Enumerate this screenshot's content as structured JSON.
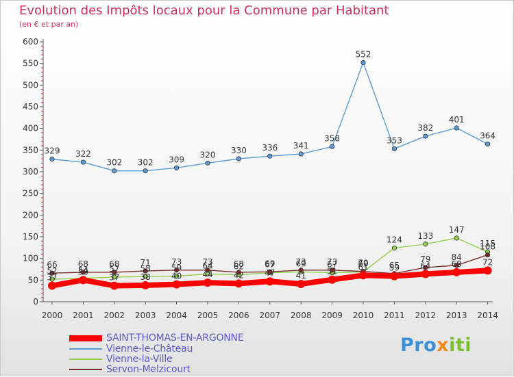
{
  "title": "Evolution des Impôts locaux pour la Commune par Habitant",
  "subtitle": "(en € et par an)",
  "logo": {
    "part1": "Pro",
    "part2": "x",
    "part3": "iti"
  },
  "chart_data": {
    "type": "line",
    "title": "Evolution des Impôts locaux pour la Commune par Habitant",
    "ylabel": "(en € et par an)",
    "xlabel": "",
    "ylim": [
      0,
      600
    ],
    "yticks": [
      0,
      50,
      100,
      150,
      200,
      250,
      300,
      350,
      400,
      450,
      500,
      550,
      600
    ],
    "categories": [
      "2000",
      "2001",
      "2002",
      "2003",
      "2004",
      "2005",
      "2006",
      "2007",
      "2008",
      "2009",
      "2010",
      "2011",
      "2012",
      "2013",
      "2014"
    ],
    "series": [
      {
        "name": "SAINT-THOMAS-EN-ARGONNE",
        "color": "#ff0000",
        "values": [
          37,
          50,
          37,
          38,
          40,
          44,
          42,
          47,
          41,
          51,
          61,
          59,
          64,
          68,
          72
        ]
      },
      {
        "name": "Vienne-le-Château",
        "color": "#5b9bd5",
        "values": [
          329,
          322,
          302,
          302,
          309,
          320,
          330,
          336,
          341,
          358,
          552,
          353,
          382,
          401,
          364
        ]
      },
      {
        "name": "Vienne-la-Ville",
        "color": "#92d050",
        "values": [
          52,
          54,
          57,
          58,
          59,
          64,
          62,
          67,
          69,
          67,
          69,
          124,
          133,
          147,
          115
        ]
      },
      {
        "name": "Servon-Melzicourt",
        "color": "#7a2a2a",
        "values": [
          66,
          68,
          68,
          71,
          73,
          73,
          68,
          69,
          73,
          73,
          70,
          65,
          79,
          84,
          108
        ]
      }
    ],
    "legend_position": "bottom-left",
    "grid": false
  }
}
